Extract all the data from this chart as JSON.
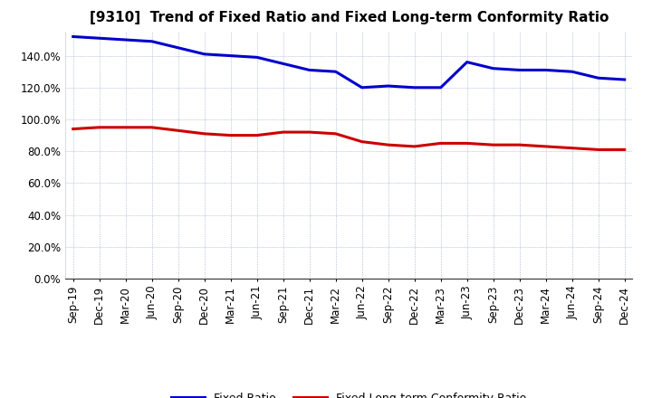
{
  "title": "[9310]  Trend of Fixed Ratio and Fixed Long-term Conformity Ratio",
  "x_labels": [
    "Sep-19",
    "Dec-19",
    "Mar-20",
    "Jun-20",
    "Sep-20",
    "Dec-20",
    "Mar-21",
    "Jun-21",
    "Sep-21",
    "Dec-21",
    "Mar-22",
    "Jun-22",
    "Sep-22",
    "Dec-22",
    "Mar-23",
    "Jun-23",
    "Sep-23",
    "Dec-23",
    "Mar-24",
    "Jun-24",
    "Sep-24",
    "Dec-24"
  ],
  "fixed_ratio": [
    152,
    151,
    150,
    149,
    145,
    141,
    140,
    139,
    135,
    131,
    130,
    120,
    121,
    120,
    120,
    136,
    132,
    131,
    131,
    130,
    126,
    125
  ],
  "fixed_lt_ratio": [
    94,
    95,
    95,
    95,
    93,
    91,
    90,
    90,
    92,
    92,
    91,
    86,
    84,
    83,
    85,
    85,
    84,
    84,
    83,
    82,
    81,
    81
  ],
  "ylim": [
    0,
    155
  ],
  "yticks": [
    0,
    20,
    40,
    60,
    80,
    100,
    120,
    140
  ],
  "y_labels": [
    "0.0%",
    "20.0%",
    "40.0%",
    "60.0%",
    "80.0%",
    "100.0%",
    "120.0%",
    "140.0%"
  ],
  "fixed_ratio_color": "#0000CC",
  "fixed_lt_ratio_color": "#CC0000",
  "grid_color": "#8899bb",
  "bg_color": "#FFFFFF",
  "plot_bg_color": "#FFFFFF",
  "legend_fixed": "Fixed Ratio",
  "legend_fixed_lt": "Fixed Long-term Conformity Ratio",
  "title_fontsize": 11,
  "tick_fontsize": 8.5,
  "legend_fontsize": 9,
  "line_width": 2.2
}
